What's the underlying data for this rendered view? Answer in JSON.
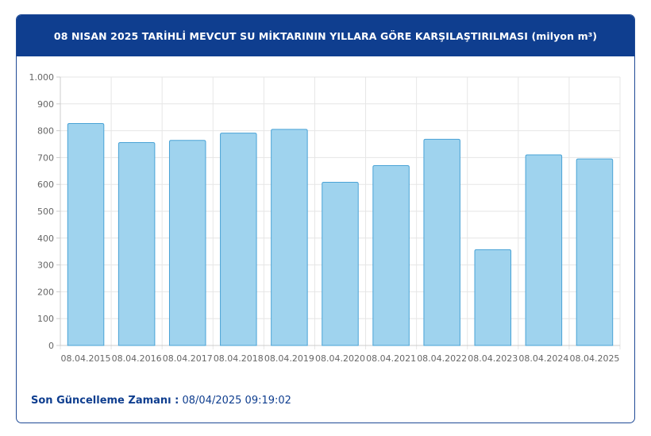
{
  "header": {
    "title": "08 NISAN 2025 TARİHLİ MEVCUT SU MİKTARININ YILLARA GÖRE KARŞILAŞTIRILMASI (milyon m³)"
  },
  "footer": {
    "label": "Son Güncelleme Zamanı :",
    "value": "08/04/2025 09:19:02"
  },
  "colors": {
    "header_bg": "#0f3e8f",
    "bar_fill": "#9fd3ee",
    "bar_stroke": "#4aa3d6",
    "grid": "#e6e6e6",
    "label_text": "#666666"
  },
  "chart_data": {
    "type": "bar",
    "categories": [
      "08.04.2015",
      "08.04.2016",
      "08.04.2017",
      "08.04.2018",
      "08.04.2019",
      "08.04.2020",
      "08.04.2021",
      "08.04.2022",
      "08.04.2023",
      "08.04.2024",
      "08.04.2025"
    ],
    "values": [
      827,
      756,
      764,
      791,
      805,
      608,
      670,
      768,
      357,
      710,
      695
    ],
    "ylim": [
      0,
      1000
    ],
    "yticks": [
      0,
      100,
      200,
      300,
      400,
      500,
      600,
      700,
      800,
      900,
      1000
    ],
    "ytick_labels": [
      "0",
      "100",
      "200",
      "300",
      "400",
      "500",
      "600",
      "700",
      "800",
      "900",
      "1.000"
    ],
    "grid": true,
    "legend": false
  }
}
